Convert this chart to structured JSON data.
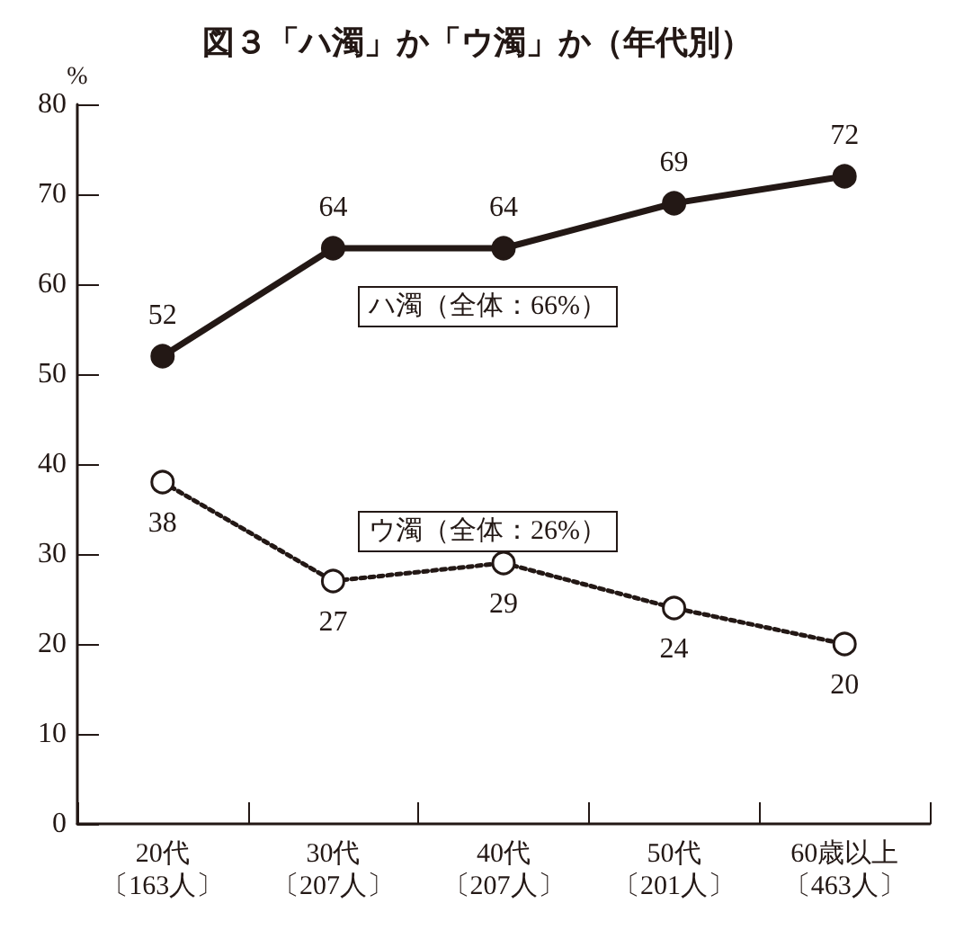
{
  "chart_data": {
    "type": "line",
    "title": "図３「ハ濁」か「ウ濁」か（年代別）",
    "ylabel": "%",
    "categories": [
      "20代〔163人〕",
      "30代〔207人〕",
      "40代〔207人〕",
      "50代〔201人〕",
      "60歳以上〔463人〕"
    ],
    "series": [
      {
        "name": "ハ濁（全体：66%）",
        "color": "#231815",
        "values": [
          52,
          64,
          64,
          69,
          72
        ],
        "line_style": "solid"
      },
      {
        "name": "ウ濁（全体：26%）",
        "color": "#231815",
        "values": [
          38,
          27,
          29,
          24,
          20
        ],
        "line_style": "dotted"
      }
    ],
    "ylim": [
      0,
      80
    ],
    "yticks": [
      0,
      10,
      20,
      30,
      40,
      50,
      60,
      70,
      80
    ],
    "grid": false,
    "legend": false,
    "marker": "circle",
    "data_labels": true
  }
}
